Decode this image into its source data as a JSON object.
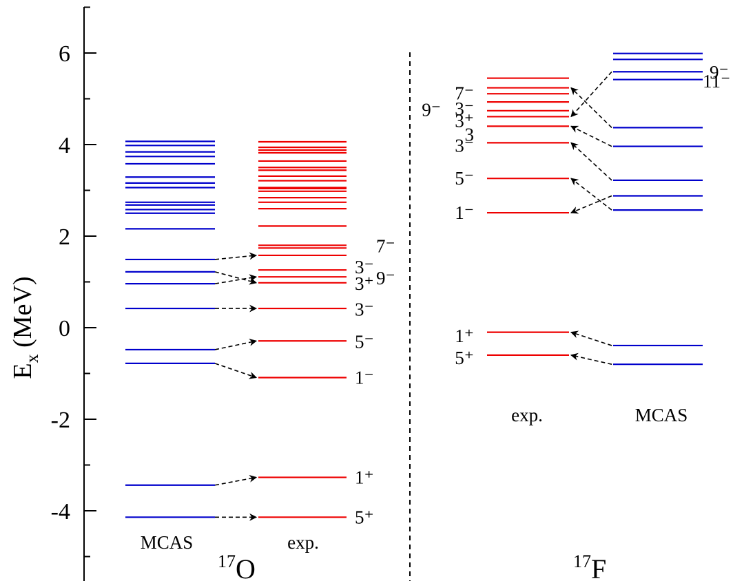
{
  "chart_data": {
    "type": "level-scheme",
    "ylabel": "E",
    "ylabel_sub": "x",
    "ylabel_unit": " (MeV)",
    "ylim": [
      -5.3,
      7.0
    ],
    "yticks": [
      -4,
      -2,
      0,
      2,
      4,
      6
    ],
    "colors": {
      "mcas": "#0000cc",
      "exp": "#ee0000",
      "arrow": "#000000",
      "axis": "#000000"
    },
    "panels": [
      {
        "nucleus_mass": "17",
        "nucleus_symbol": "O",
        "columns": [
          {
            "label": "MCAS",
            "color_key": "mcas",
            "levels": [
              4.07,
              3.98,
              3.84,
              3.74,
              3.58,
              3.29,
              3.16,
              3.06,
              2.74,
              2.68,
              2.58,
              2.5,
              2.16,
              1.49,
              1.22,
              0.96,
              0.42,
              -0.48,
              -0.78,
              -3.44,
              -4.14
            ]
          },
          {
            "label": "exp.",
            "color_key": "exp",
            "levels": [
              4.06,
              3.94,
              3.88,
              3.82,
              3.64,
              3.5,
              3.44,
              3.31,
              3.21,
              3.06,
              3.04,
              2.98,
              2.84,
              2.74,
              2.6,
              2.22,
              1.8,
              1.74,
              1.58,
              1.26,
              1.11,
              0.98,
              0.42,
              -0.29,
              -1.09,
              -3.27,
              -4.14
            ]
          }
        ],
        "spin_labels": [
          {
            "text": "7⁻",
            "y": 1.78
          },
          {
            "text": "3⁻",
            "y": 1.32
          },
          {
            "text": "9⁻",
            "y": 1.08
          },
          {
            "text": "3⁺",
            "y": 0.96
          },
          {
            "text": "3⁻",
            "y": 0.4
          },
          {
            "text": "5⁻",
            "y": -0.31
          },
          {
            "text": "1⁻",
            "y": -1.09
          },
          {
            "text": "1⁺",
            "y": -3.27
          },
          {
            "text": "5⁺",
            "y": -4.14
          }
        ],
        "arrows": [
          {
            "from": 1.49,
            "to": 1.58
          },
          {
            "from": 1.22,
            "to": 0.98
          },
          {
            "from": 0.96,
            "to": 1.11
          },
          {
            "from": 0.42,
            "to": 0.42
          },
          {
            "from": -0.48,
            "to": -0.29
          },
          {
            "from": -0.78,
            "to": -1.09
          },
          {
            "from": -3.44,
            "to": -3.27
          },
          {
            "from": -4.14,
            "to": -4.14
          }
        ]
      },
      {
        "nucleus_mass": "17",
        "nucleus_symbol": "F",
        "columns": [
          {
            "label": "exp.",
            "color_key": "exp",
            "levels": [
              5.45,
              5.24,
              5.11,
              4.93,
              4.74,
              4.61,
              4.4,
              4.04,
              3.26,
              2.51,
              -0.1,
              -0.6
            ]
          },
          {
            "label": "MCAS",
            "color_key": "mcas",
            "levels": [
              5.99,
              5.86,
              5.59,
              5.42,
              4.37,
              3.96,
              3.22,
              2.88,
              2.57,
              -0.39,
              -0.8
            ]
          }
        ],
        "spin_labels_left": [
          {
            "text": "7⁻",
            "y": 5.12
          },
          {
            "text": "3⁻",
            "y": 4.78
          },
          {
            "text": "3⁺",
            "y": 4.52
          },
          {
            "text": "3",
            "y": 4.22
          },
          {
            "text": "3⁻",
            "y": 3.98
          },
          {
            "text": "5⁻",
            "y": 3.26
          },
          {
            "text": "1⁻",
            "y": 2.51
          },
          {
            "text": "1⁺",
            "y": -0.18
          },
          {
            "text": "5⁺",
            "y": -0.66
          }
        ],
        "spin_labels_far_left": [
          {
            "text": "9⁻",
            "y": 4.76
          }
        ],
        "spin_labels_right": [
          {
            "text": "9⁻",
            "y": 5.58
          },
          {
            "text": "11⁻",
            "y": 5.38
          }
        ],
        "arrows": [
          {
            "from": 5.59,
            "to": 4.61
          },
          {
            "from": 4.37,
            "to": 5.24
          },
          {
            "from": 3.96,
            "to": 4.4
          },
          {
            "from": 3.22,
            "to": 4.04
          },
          {
            "from": 2.88,
            "to": 2.51
          },
          {
            "from": 2.57,
            "to": 3.26
          },
          {
            "from": -0.39,
            "to": -0.1
          },
          {
            "from": -0.8,
            "to": -0.6
          }
        ]
      }
    ]
  }
}
